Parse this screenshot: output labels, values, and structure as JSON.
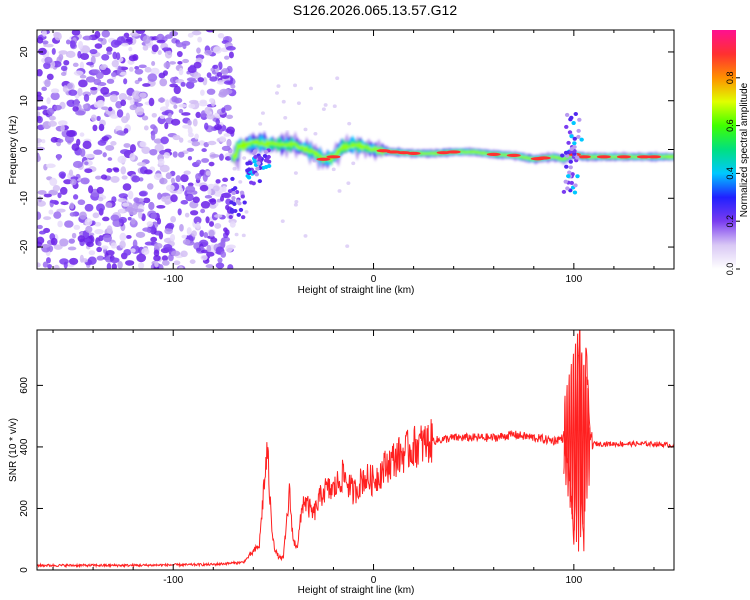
{
  "title": "S126.2026.065.13.57.G12",
  "chart_data": [
    {
      "type": "heatmap",
      "title": "S126.2026.065.13.57.G12",
      "xlabel": "Height of straight line (km)",
      "ylabel": "Frequency (Hz)",
      "xlim": [
        -168,
        150
      ],
      "ylim": [
        -24.5,
        24.5
      ],
      "xticks": [
        -100,
        0,
        100
      ],
      "yticks": [
        -20,
        -10,
        0,
        10,
        20
      ],
      "colorbar": {
        "label": "Normalized spectral amplitude",
        "range": [
          0,
          1
        ],
        "ticks": [
          0.0,
          0.2,
          0.4,
          0.6,
          0.8
        ],
        "tick_labels": [
          "0.0",
          "0.2",
          "0.4",
          "0.6",
          "0.8"
        ],
        "colors": [
          "#ffffff",
          "#d9c8f5",
          "#7a3cf0",
          "#2020ff",
          "#00c8ff",
          "#00e080",
          "#40ff00",
          "#e0ff00",
          "#ff9000",
          "#ff3030",
          "#ff1090"
        ]
      },
      "ridge": {
        "x": [
          -68,
          -60,
          -50,
          -40,
          -30,
          -25,
          -20,
          -15,
          -10,
          -5,
          0,
          10,
          20,
          30,
          40,
          50,
          60,
          70,
          80,
          90,
          95,
          100,
          105,
          110,
          120,
          130,
          140,
          150
        ],
        "freq": [
          0.5,
          1.5,
          1.0,
          1.0,
          -0.5,
          -2.0,
          -1.5,
          0.5,
          1.0,
          0.5,
          0.0,
          -0.5,
          -0.8,
          -0.8,
          -0.5,
          -0.5,
          -1.0,
          -1.2,
          -2.0,
          -1.5,
          -2.0,
          -1.0,
          -1.5,
          -1.5,
          -1.5,
          -1.5,
          -1.5,
          -1.5
        ]
      },
      "noise_region_x": [
        -168,
        -70
      ]
    },
    {
      "type": "line",
      "title": "",
      "xlabel": "Height of straight line (km)",
      "ylabel": "SNR (10 * v/v)",
      "xlim": [
        -168,
        150
      ],
      "ylim": [
        0,
        780
      ],
      "xticks": [
        -100,
        0,
        100
      ],
      "yticks": [
        0,
        200,
        400,
        600
      ],
      "series": [
        {
          "name": "SNR",
          "color": "#ff2020",
          "x": [
            -168,
            -120,
            -80,
            -65,
            -57,
            -55,
            -53,
            -51,
            -49,
            -47,
            -45,
            -42,
            -40,
            -38,
            -35,
            -30,
            -25,
            -20,
            -15,
            -10,
            -5,
            0,
            5,
            10,
            20,
            30,
            40,
            50,
            60,
            70,
            80,
            90,
            95,
            98,
            100,
            102,
            103,
            104,
            105,
            106,
            108,
            110,
            120,
            130,
            140,
            150
          ],
          "y": [
            15,
            15,
            18,
            25,
            80,
            250,
            390,
            150,
            60,
            40,
            40,
            250,
            90,
            80,
            230,
            180,
            260,
            260,
            310,
            250,
            300,
            290,
            330,
            360,
            400,
            420,
            430,
            430,
            430,
            440,
            430,
            420,
            430,
            300,
            90,
            650,
            780,
            200,
            90,
            740,
            440,
            410,
            410,
            410,
            410,
            405
          ]
        }
      ]
    }
  ]
}
